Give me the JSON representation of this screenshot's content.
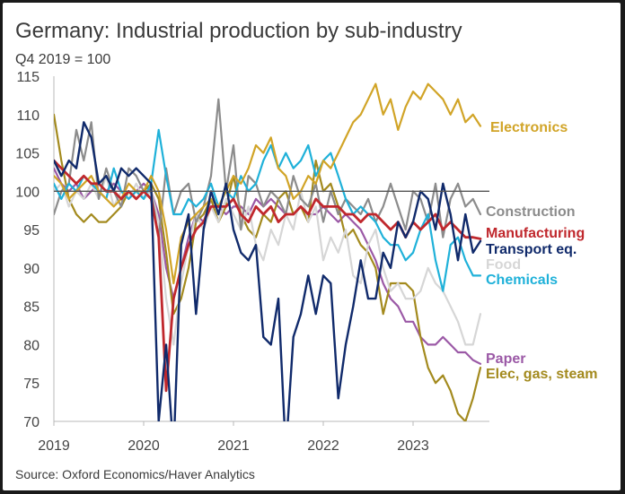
{
  "title": "Germany: Industrial production by sub-industry",
  "subtitle": "Q4 2019 = 100",
  "source": "Source: Oxford Economics/Haver Analytics",
  "chart_data": {
    "type": "line",
    "title": "Germany: Industrial production by sub-industry",
    "subtitle": "Q4 2019 = 100",
    "xlabel": "",
    "ylabel": "",
    "xlim": [
      2019.0,
      2023.85
    ],
    "ylim": [
      70,
      115
    ],
    "x_ticks": [
      "2019",
      "2020",
      "2021",
      "2022",
      "2023"
    ],
    "y_ticks": [
      70,
      75,
      80,
      85,
      90,
      95,
      100,
      105,
      110,
      115
    ],
    "reference_line": 100,
    "grid": false,
    "legend": "direct labels at right end of lines",
    "series": [
      {
        "name": "Paper",
        "color": "#9b59a6",
        "width": 2.2,
        "x": [
          2019.0,
          2019.083,
          2019.167,
          2019.25,
          2019.333,
          2019.417,
          2019.5,
          2019.583,
          2019.667,
          2019.75,
          2019.833,
          2019.917,
          2020.0,
          2020.083,
          2020.167,
          2020.25,
          2020.333,
          2020.417,
          2020.5,
          2020.583,
          2020.667,
          2020.75,
          2020.833,
          2020.917,
          2021.0,
          2021.083,
          2021.167,
          2021.25,
          2021.333,
          2021.417,
          2021.5,
          2021.583,
          2021.667,
          2021.75,
          2021.833,
          2021.917,
          2022.0,
          2022.083,
          2022.167,
          2022.25,
          2022.333,
          2022.417,
          2022.5,
          2022.583,
          2022.667,
          2022.75,
          2022.833,
          2022.917,
          2023.0,
          2023.083,
          2023.167,
          2023.25,
          2023.333,
          2023.417,
          2023.5,
          2023.583,
          2023.667,
          2023.75
        ],
        "y": [
          103,
          101,
          100,
          101,
          99,
          100,
          101,
          100,
          101,
          100,
          99,
          100,
          101,
          100,
          97,
          90,
          86,
          90,
          94,
          97,
          96,
          99,
          98,
          97,
          98,
          98,
          97,
          99,
          98,
          99,
          98,
          97,
          97,
          98,
          97,
          97,
          98,
          97,
          96,
          97,
          96,
          95,
          93,
          91,
          88,
          86,
          85,
          83,
          83,
          81,
          80,
          80,
          81,
          80,
          79,
          79,
          78,
          77.5
        ]
      },
      {
        "name": "Elec, gas, steam",
        "color": "#a38a1e",
        "width": 2.2,
        "x": [
          2019.0,
          2019.083,
          2019.167,
          2019.25,
          2019.333,
          2019.417,
          2019.5,
          2019.583,
          2019.667,
          2019.75,
          2019.833,
          2019.917,
          2020.0,
          2020.083,
          2020.167,
          2020.25,
          2020.333,
          2020.417,
          2020.5,
          2020.583,
          2020.667,
          2020.75,
          2020.833,
          2020.917,
          2021.0,
          2021.083,
          2021.167,
          2021.25,
          2021.333,
          2021.417,
          2021.5,
          2021.583,
          2021.667,
          2021.75,
          2021.833,
          2021.917,
          2022.0,
          2022.083,
          2022.167,
          2022.25,
          2022.333,
          2022.417,
          2022.5,
          2022.583,
          2022.667,
          2022.75,
          2022.833,
          2022.917,
          2023.0,
          2023.083,
          2023.167,
          2023.25,
          2023.333,
          2023.417,
          2023.5,
          2023.583,
          2023.667,
          2023.75
        ],
        "y": [
          110,
          104,
          99,
          97,
          96,
          97,
          96,
          96,
          97,
          98,
          100,
          99,
          100,
          101,
          99,
          92,
          84,
          86,
          90,
          96,
          97,
          99,
          96,
          98,
          102,
          97,
          95,
          94,
          97,
          96,
          99,
          100,
          97,
          98,
          96,
          104,
          100,
          101,
          98,
          94,
          95,
          93,
          92,
          90,
          84,
          88,
          88,
          88,
          87,
          81,
          77,
          75,
          76,
          74,
          71,
          70,
          73,
          77
        ]
      },
      {
        "name": "Food",
        "color": "#d6d6d6",
        "width": 2.2,
        "x": [
          2019.0,
          2019.083,
          2019.167,
          2019.25,
          2019.333,
          2019.417,
          2019.5,
          2019.583,
          2019.667,
          2019.75,
          2019.833,
          2019.917,
          2020.0,
          2020.083,
          2020.167,
          2020.25,
          2020.333,
          2020.417,
          2020.5,
          2020.583,
          2020.667,
          2020.75,
          2020.833,
          2020.917,
          2021.0,
          2021.083,
          2021.167,
          2021.25,
          2021.333,
          2021.417,
          2021.5,
          2021.583,
          2021.667,
          2021.75,
          2021.833,
          2021.917,
          2022.0,
          2022.083,
          2022.167,
          2022.25,
          2022.333,
          2022.417,
          2022.5,
          2022.583,
          2022.667,
          2022.75,
          2022.833,
          2022.917,
          2023.0,
          2023.083,
          2023.167,
          2023.25,
          2023.333,
          2023.417,
          2023.5,
          2023.583,
          2023.667,
          2023.75
        ],
        "y": [
          100,
          101,
          98,
          100,
          99,
          101,
          99,
          102,
          98,
          100,
          99,
          101,
          99,
          100,
          96,
          86,
          80,
          88,
          93,
          97,
          95,
          98,
          96,
          99,
          97,
          95,
          98,
          93,
          91,
          95,
          93,
          97,
          95,
          100,
          96,
          98,
          91,
          94,
          92,
          95,
          89,
          88,
          93,
          95,
          90,
          87,
          88,
          86,
          86,
          87,
          90,
          88,
          87,
          85,
          83,
          80,
          80,
          84
        ]
      },
      {
        "name": "Construction",
        "color": "#8c8c8c",
        "width": 2.2,
        "x": [
          2019.0,
          2019.083,
          2019.167,
          2019.25,
          2019.333,
          2019.417,
          2019.5,
          2019.583,
          2019.667,
          2019.75,
          2019.833,
          2019.917,
          2020.0,
          2020.083,
          2020.167,
          2020.25,
          2020.333,
          2020.417,
          2020.5,
          2020.583,
          2020.667,
          2020.75,
          2020.833,
          2020.917,
          2021.0,
          2021.083,
          2021.167,
          2021.25,
          2021.333,
          2021.417,
          2021.5,
          2021.583,
          2021.667,
          2021.75,
          2021.833,
          2021.917,
          2022.0,
          2022.083,
          2022.167,
          2022.25,
          2022.333,
          2022.417,
          2022.5,
          2022.583,
          2022.667,
          2022.75,
          2022.833,
          2022.917,
          2023.0,
          2023.083,
          2023.167,
          2023.25,
          2023.333,
          2023.417,
          2023.5,
          2023.583,
          2023.667,
          2023.75
        ],
        "y": [
          97,
          100,
          101,
          108,
          104,
          109,
          99,
          103,
          100,
          98,
          103,
          102,
          100,
          100,
          94,
          103,
          97,
          100,
          101,
          96,
          98,
          102,
          112,
          100,
          106,
          95,
          102,
          101,
          98,
          100,
          99,
          97,
          102,
          99,
          98,
          101,
          96,
          100,
          97,
          99,
          98,
          97,
          99,
          96,
          98,
          101,
          98,
          95,
          100,
          99,
          96,
          101,
          94,
          99,
          101,
          98,
          99,
          97
        ]
      },
      {
        "name": "Chemicals",
        "color": "#1fb1d9",
        "width": 2.2,
        "x": [
          2019.0,
          2019.083,
          2019.167,
          2019.25,
          2019.333,
          2019.417,
          2019.5,
          2019.583,
          2019.667,
          2019.75,
          2019.833,
          2019.917,
          2020.0,
          2020.083,
          2020.167,
          2020.25,
          2020.333,
          2020.417,
          2020.5,
          2020.583,
          2020.667,
          2020.75,
          2020.833,
          2020.917,
          2021.0,
          2021.083,
          2021.167,
          2021.25,
          2021.333,
          2021.417,
          2021.5,
          2021.583,
          2021.667,
          2021.75,
          2021.833,
          2021.917,
          2022.0,
          2022.083,
          2022.167,
          2022.25,
          2022.333,
          2022.417,
          2022.5,
          2022.583,
          2022.667,
          2022.75,
          2022.833,
          2022.917,
          2023.0,
          2023.083,
          2023.167,
          2023.25,
          2023.333,
          2023.417,
          2023.5,
          2023.583,
          2023.667,
          2023.75
        ],
        "y": [
          101,
          99,
          101,
          100,
          102,
          101,
          100,
          99,
          103,
          100,
          99,
          100,
          99,
          101,
          108,
          102,
          97,
          97,
          99,
          98,
          99,
          101,
          98,
          100,
          99,
          102,
          100,
          101,
          104,
          106,
          103,
          105,
          103,
          104,
          106,
          102,
          104,
          105,
          102,
          99,
          97,
          98,
          97,
          96,
          94,
          93,
          93,
          91,
          92,
          95,
          97,
          91,
          87,
          93,
          94,
          91,
          89,
          89
        ]
      },
      {
        "name": "Electronics",
        "color": "#d1a427",
        "width": 2.2,
        "x": [
          2019.0,
          2019.083,
          2019.167,
          2019.25,
          2019.333,
          2019.417,
          2019.5,
          2019.583,
          2019.667,
          2019.75,
          2019.833,
          2019.917,
          2020.0,
          2020.083,
          2020.167,
          2020.25,
          2020.333,
          2020.417,
          2020.5,
          2020.583,
          2020.667,
          2020.75,
          2020.833,
          2020.917,
          2021.0,
          2021.083,
          2021.167,
          2021.25,
          2021.333,
          2021.417,
          2021.5,
          2021.583,
          2021.667,
          2021.75,
          2021.833,
          2021.917,
          2022.0,
          2022.083,
          2022.167,
          2022.25,
          2022.333,
          2022.417,
          2022.5,
          2022.583,
          2022.667,
          2022.75,
          2022.833,
          2022.917,
          2023.0,
          2023.083,
          2023.167,
          2023.25,
          2023.333,
          2023.417,
          2023.5,
          2023.583,
          2023.667,
          2023.75
        ],
        "y": [
          102,
          101,
          99,
          100,
          101,
          102,
          100,
          99,
          98,
          99,
          101,
          100,
          100,
          102,
          100,
          95,
          88,
          94,
          96,
          97,
          98,
          99,
          98,
          100,
          102,
          101,
          103,
          106,
          105,
          107,
          103,
          102,
          99,
          100,
          102,
          101,
          104,
          103,
          105,
          107,
          109,
          110,
          112,
          114,
          110,
          112,
          108,
          111,
          113,
          112,
          114,
          113,
          112,
          110,
          112,
          109,
          110,
          108.5
        ]
      },
      {
        "name": "Manufacturing",
        "color": "#c0282d",
        "width": 2.8,
        "x": [
          2019.0,
          2019.083,
          2019.167,
          2019.25,
          2019.333,
          2019.417,
          2019.5,
          2019.583,
          2019.667,
          2019.75,
          2019.833,
          2019.917,
          2020.0,
          2020.083,
          2020.167,
          2020.25,
          2020.333,
          2020.417,
          2020.5,
          2020.583,
          2020.667,
          2020.75,
          2020.833,
          2020.917,
          2021.0,
          2021.083,
          2021.167,
          2021.25,
          2021.333,
          2021.417,
          2021.5,
          2021.583,
          2021.667,
          2021.75,
          2021.833,
          2021.917,
          2022.0,
          2022.083,
          2022.167,
          2022.25,
          2022.333,
          2022.417,
          2022.5,
          2022.583,
          2022.667,
          2022.75,
          2022.833,
          2022.917,
          2023.0,
          2023.083,
          2023.167,
          2023.25,
          2023.333,
          2023.417,
          2023.5,
          2023.583,
          2023.667,
          2023.75
        ],
        "y": [
          104,
          103,
          102,
          101,
          102,
          101,
          101,
          100,
          100,
          99,
          100,
          99,
          100,
          99,
          94,
          74,
          86,
          90,
          93,
          95,
          96,
          98,
          98,
          98,
          99,
          97,
          96,
          98,
          97,
          98,
          96,
          97,
          97,
          98,
          97,
          99,
          98,
          98,
          98,
          97,
          97,
          96,
          97,
          97,
          96,
          95,
          96,
          94,
          96,
          95,
          96,
          97,
          95,
          96,
          95,
          94,
          94,
          93.8
        ]
      },
      {
        "name": "Transport eq.",
        "color": "#102a6b",
        "width": 2.4,
        "x": [
          2019.0,
          2019.083,
          2019.167,
          2019.25,
          2019.333,
          2019.417,
          2019.5,
          2019.583,
          2019.667,
          2019.75,
          2019.833,
          2019.917,
          2020.0,
          2020.083,
          2020.167,
          2020.25,
          2020.333,
          2020.417,
          2020.5,
          2020.583,
          2020.667,
          2020.75,
          2020.833,
          2020.917,
          2021.0,
          2021.083,
          2021.167,
          2021.25,
          2021.333,
          2021.417,
          2021.5,
          2021.583,
          2021.667,
          2021.75,
          2021.833,
          2021.917,
          2022.0,
          2022.083,
          2022.167,
          2022.25,
          2022.333,
          2022.417,
          2022.5,
          2022.583,
          2022.667,
          2022.75,
          2022.833,
          2022.917,
          2023.0,
          2023.083,
          2023.167,
          2023.25,
          2023.333,
          2023.417,
          2023.5,
          2023.583,
          2023.667,
          2023.75
        ],
        "y": [
          104,
          102,
          104,
          103,
          109,
          107,
          101,
          102,
          100,
          103,
          102,
          103,
          102,
          101,
          70,
          80,
          66,
          93,
          97,
          84,
          95,
          100,
          97,
          101,
          95,
          92,
          91,
          93,
          81,
          80,
          86,
          66,
          81,
          84,
          89,
          84,
          89,
          88,
          73,
          80,
          85,
          91,
          86,
          86,
          92,
          90,
          96,
          94,
          96,
          100,
          99,
          95,
          101,
          97,
          91,
          97,
          92,
          93.5
        ]
      }
    ]
  }
}
